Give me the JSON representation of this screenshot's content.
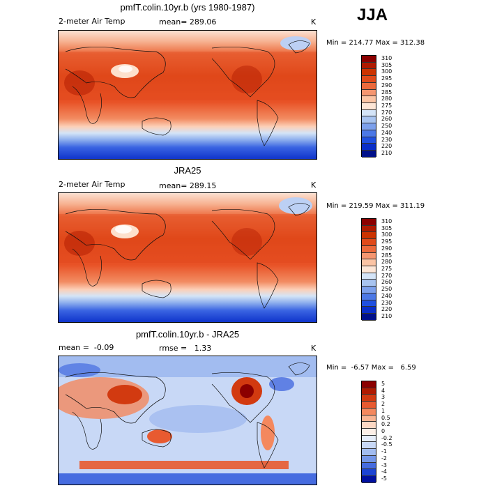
{
  "season": "JJA",
  "panels": [
    {
      "title": "pmfT.colin.10yr.b (yrs 1980-1987)",
      "left_label": "2-meter Air Temp",
      "center_label": "mean= 289.06",
      "unit": "K",
      "minmax": "Min = 214.77 Max = 312.38",
      "levels": [
        "310",
        "305",
        "300",
        "295",
        "290",
        "285",
        "280",
        "275",
        "270",
        "260",
        "250",
        "240",
        "230",
        "220",
        "210"
      ],
      "colors": [
        "#8b0000",
        "#b01a00",
        "#cc3300",
        "#e04a1a",
        "#ec6a3c",
        "#f59670",
        "#fbc4a4",
        "#fde6d6",
        "#d4e4f7",
        "#a8c4f0",
        "#7ca0ec",
        "#4c78e6",
        "#2050e0",
        "#0a2ec8",
        "#00108a"
      ]
    },
    {
      "title": "JRA25",
      "left_label": "2-meter Air Temp",
      "center_label": "mean= 289.15",
      "unit": "K",
      "minmax": "Min = 219.59 Max = 311.19",
      "levels": [
        "310",
        "305",
        "300",
        "295",
        "290",
        "285",
        "280",
        "275",
        "270",
        "260",
        "250",
        "240",
        "230",
        "220",
        "210"
      ],
      "colors": [
        "#8b0000",
        "#b01a00",
        "#cc3300",
        "#e04a1a",
        "#ec6a3c",
        "#f59670",
        "#fbc4a4",
        "#fde6d6",
        "#d4e4f7",
        "#a8c4f0",
        "#7ca0ec",
        "#4c78e6",
        "#2050e0",
        "#0a2ec8",
        "#00108a"
      ]
    },
    {
      "title": "pmfT.colin.10yr.b - JRA25",
      "left_label": "mean =  -0.09",
      "center_label": "rmse =   1.33",
      "unit": "K",
      "minmax": "Min =  -6.57 Max =   6.59",
      "levels": [
        "5",
        "4",
        "3",
        "2",
        "1",
        "0.5",
        "0.2",
        "0",
        "-0.2",
        "-0.5",
        "-1",
        "-2",
        "-3",
        "-4",
        "-5"
      ],
      "colors": [
        "#8b0000",
        "#b01a00",
        "#d23a10",
        "#e85a30",
        "#f4885e",
        "#f9b493",
        "#fcd8c4",
        "#fdf0e8",
        "#e6eefb",
        "#c8d8f6",
        "#a2bcf0",
        "#7496e8",
        "#466ce0",
        "#1c44d4",
        "#0010a0"
      ]
    }
  ]
}
